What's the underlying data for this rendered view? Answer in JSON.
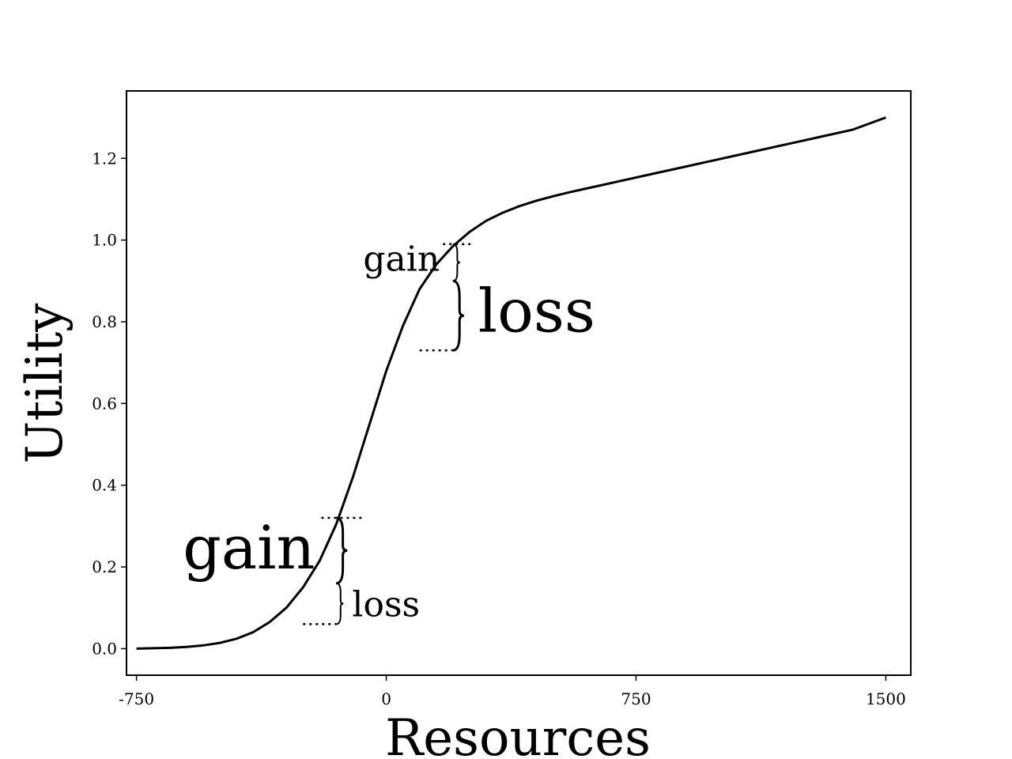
{
  "chart_data": {
    "type": "line",
    "title": "",
    "xlabel": "Resources",
    "ylabel": "Utility",
    "xlim": [
      -780,
      1575
    ],
    "ylim": [
      -0.065,
      1.365
    ],
    "grid": false,
    "legend": "none",
    "line_color": "#000000",
    "xticks": [
      {
        "value": -750,
        "label": "-750"
      },
      {
        "value": 0,
        "label": "0"
      },
      {
        "value": 750,
        "label": "750"
      },
      {
        "value": 1500,
        "label": "1500"
      }
    ],
    "yticks": [
      {
        "value": 0.0,
        "label": "0.0"
      },
      {
        "value": 0.2,
        "label": "0.2"
      },
      {
        "value": 0.4,
        "label": "0.4"
      },
      {
        "value": 0.6,
        "label": "0.6"
      },
      {
        "value": 0.8,
        "label": "0.8"
      },
      {
        "value": 1.0,
        "label": "1.0"
      },
      {
        "value": 1.2,
        "label": "1.2"
      }
    ],
    "series": [
      {
        "x": [
          -750,
          -700,
          -650,
          -600,
          -550,
          -500,
          -450,
          -400,
          -350,
          -300,
          -250,
          -200,
          -150,
          -100,
          -50,
          0,
          50,
          100,
          150,
          200,
          250,
          300,
          350,
          400,
          450,
          500,
          550,
          600,
          650,
          700,
          800,
          900,
          1000,
          1100,
          1200,
          1300,
          1400,
          1500
        ],
        "y": [
          0.0,
          0.001,
          0.002,
          0.004,
          0.008,
          0.014,
          0.024,
          0.04,
          0.065,
          0.1,
          0.15,
          0.215,
          0.305,
          0.42,
          0.55,
          0.68,
          0.79,
          0.88,
          0.94,
          0.985,
          1.02,
          1.047,
          1.067,
          1.083,
          1.096,
          1.107,
          1.117,
          1.126,
          1.135,
          1.144,
          1.162,
          1.18,
          1.198,
          1.216,
          1.234,
          1.252,
          1.27,
          1.3
        ]
      }
    ],
    "annotations": [
      {
        "text": "gain",
        "size": "large",
        "x": -350,
        "y": 0.24,
        "brace": "{",
        "brace_x_range": [
          -195,
          -70
        ],
        "y_range": [
          0.16,
          0.32
        ]
      },
      {
        "text": "loss",
        "size": "small",
        "x": -60,
        "y": 0.105,
        "brace": "}",
        "brace_x_range": [
          -250,
          -150
        ],
        "y_range": [
          0.06,
          0.16
        ]
      },
      {
        "text": "gain",
        "size": "small",
        "x": -40,
        "y": 0.95,
        "brace": "{",
        "brace_x_range": [
          170,
          260
        ],
        "y_range": [
          0.9,
          0.99
        ]
      },
      {
        "text": "loss",
        "size": "large",
        "x": 310,
        "y": 0.82,
        "brace": "}",
        "brace_x_range": [
          100,
          200
        ],
        "y_range": [
          0.73,
          0.9
        ]
      }
    ]
  }
}
